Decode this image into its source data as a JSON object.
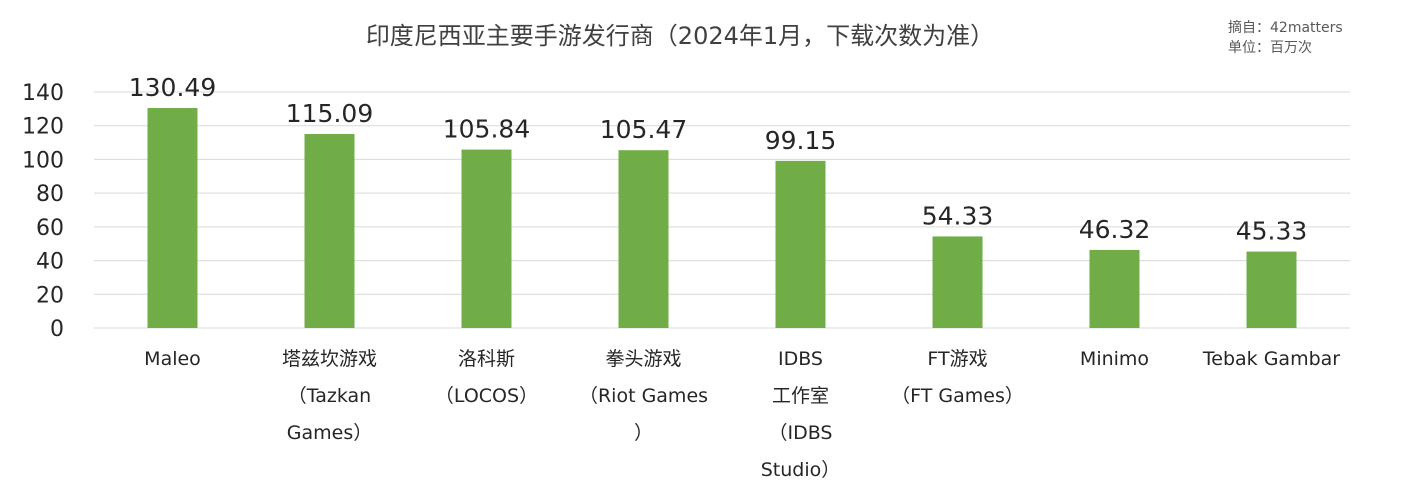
{
  "chart_data": {
    "type": "bar",
    "title": "印度尼西亚主要手游发行商（2024年1月，下载次数为准）",
    "source_lines": [
      "摘自：42matters",
      "单位：百万次"
    ],
    "categories": [
      [
        "Maleo"
      ],
      [
        "塔兹坎游戏",
        "（Tazkan",
        "Games）"
      ],
      [
        "洛科斯",
        "（LOCOS）"
      ],
      [
        "拳头游戏",
        "（Riot Games",
        "）"
      ],
      [
        "IDBS",
        "工作室",
        "（IDBS",
        "Studio）"
      ],
      [
        "FT游戏",
        "（FT Games）"
      ],
      [
        "Minimo"
      ],
      [
        "Tebak Gambar"
      ]
    ],
    "values": [
      130.49,
      115.09,
      105.84,
      105.47,
      99.15,
      54.33,
      46.32,
      45.33
    ],
    "yticks": [
      0,
      20,
      40,
      60,
      80,
      100,
      120,
      140
    ],
    "ylim": [
      0,
      140
    ],
    "grid": true,
    "bar_color": "#70ad47"
  }
}
